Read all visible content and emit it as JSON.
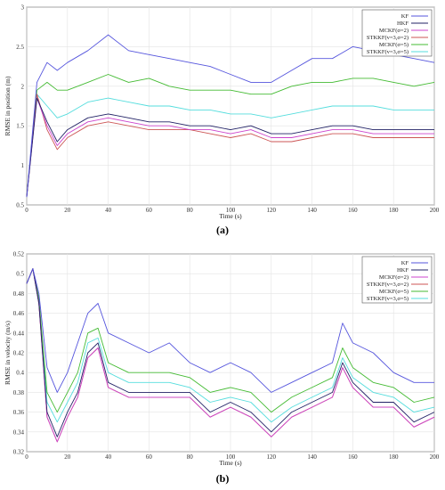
{
  "chart_data": [
    {
      "type": "line",
      "caption": "(a)",
      "xlabel": "Time (s)",
      "ylabel": "RMSE in position (m)",
      "xlim": [
        0,
        200
      ],
      "ylim": [
        0.5,
        3
      ],
      "xticks": [
        0,
        20,
        40,
        60,
        80,
        100,
        120,
        140,
        160,
        180,
        200
      ],
      "yticks": [
        0.5,
        1,
        1.5,
        2,
        2.5,
        3
      ],
      "grid": true,
      "legend_position": "top-right",
      "x": [
        0,
        5,
        10,
        15,
        20,
        30,
        40,
        50,
        60,
        70,
        80,
        90,
        100,
        110,
        120,
        130,
        140,
        150,
        160,
        170,
        180,
        190,
        200
      ],
      "series": [
        {
          "name": "KF",
          "color": "#5555dd",
          "values": [
            0.6,
            2.05,
            2.3,
            2.2,
            2.3,
            2.45,
            2.65,
            2.45,
            2.4,
            2.35,
            2.3,
            2.25,
            2.15,
            2.05,
            2.05,
            2.2,
            2.35,
            2.35,
            2.5,
            2.45,
            2.4,
            2.35,
            2.3
          ]
        },
        {
          "name": "HKF",
          "color": "#222266",
          "values": [
            0.6,
            1.85,
            1.55,
            1.3,
            1.45,
            1.6,
            1.65,
            1.6,
            1.55,
            1.55,
            1.5,
            1.5,
            1.45,
            1.5,
            1.4,
            1.4,
            1.45,
            1.5,
            1.5,
            1.45,
            1.45,
            1.45,
            1.45
          ]
        },
        {
          "name": "MCKF(σ=2)",
          "color": "#cc44cc",
          "values": [
            0.6,
            1.85,
            1.5,
            1.25,
            1.4,
            1.55,
            1.6,
            1.55,
            1.5,
            1.5,
            1.45,
            1.45,
            1.4,
            1.45,
            1.35,
            1.35,
            1.4,
            1.45,
            1.45,
            1.4,
            1.4,
            1.4,
            1.4
          ]
        },
        {
          "name": "STKKF(v=3,σ=2)",
          "color": "#cc5555",
          "values": [
            0.6,
            1.9,
            1.45,
            1.2,
            1.35,
            1.5,
            1.55,
            1.5,
            1.45,
            1.45,
            1.45,
            1.4,
            1.35,
            1.4,
            1.3,
            1.3,
            1.35,
            1.4,
            1.4,
            1.35,
            1.35,
            1.35,
            1.35
          ]
        },
        {
          "name": "MCKF(σ=5)",
          "color": "#44bb33",
          "values": [
            0.6,
            1.95,
            2.05,
            1.95,
            1.95,
            2.05,
            2.15,
            2.05,
            2.1,
            2.0,
            1.95,
            1.95,
            1.95,
            1.9,
            1.9,
            2.0,
            2.05,
            2.05,
            2.1,
            2.1,
            2.05,
            2.0,
            2.05
          ]
        },
        {
          "name": "STKKF(v=3,σ=5)",
          "color": "#55dddd",
          "values": [
            0.6,
            1.9,
            1.75,
            1.6,
            1.65,
            1.8,
            1.85,
            1.8,
            1.75,
            1.75,
            1.7,
            1.7,
            1.65,
            1.65,
            1.6,
            1.65,
            1.7,
            1.75,
            1.75,
            1.75,
            1.7,
            1.7,
            1.7
          ]
        }
      ]
    },
    {
      "type": "line",
      "caption": "(b)",
      "xlabel": "Time (s)",
      "ylabel": "RMSE in velocity (m/s)",
      "xlim": [
        0,
        200
      ],
      "ylim": [
        0.32,
        0.52
      ],
      "xticks": [
        0,
        20,
        40,
        60,
        80,
        100,
        120,
        140,
        160,
        180,
        200
      ],
      "yticks": [
        0.32,
        0.34,
        0.36,
        0.38,
        0.4,
        0.42,
        0.44,
        0.46,
        0.48,
        0.5,
        0.52
      ],
      "grid": true,
      "legend_position": "top-right",
      "x": [
        0,
        3,
        6,
        10,
        15,
        20,
        25,
        30,
        35,
        40,
        50,
        60,
        70,
        80,
        90,
        100,
        110,
        120,
        130,
        140,
        150,
        155,
        160,
        170,
        180,
        190,
        200
      ],
      "series": [
        {
          "name": "KF",
          "color": "#5555dd",
          "values": [
            0.49,
            0.505,
            0.48,
            0.405,
            0.38,
            0.4,
            0.43,
            0.46,
            0.47,
            0.44,
            0.43,
            0.42,
            0.43,
            0.41,
            0.4,
            0.41,
            0.4,
            0.38,
            0.39,
            0.4,
            0.41,
            0.45,
            0.43,
            0.42,
            0.4,
            0.39,
            0.39
          ]
        },
        {
          "name": "HKF",
          "color": "#222266",
          "values": [
            0.49,
            0.505,
            0.47,
            0.36,
            0.335,
            0.36,
            0.38,
            0.42,
            0.43,
            0.39,
            0.38,
            0.38,
            0.38,
            0.38,
            0.36,
            0.37,
            0.36,
            0.34,
            0.36,
            0.37,
            0.38,
            0.41,
            0.39,
            0.37,
            0.37,
            0.35,
            0.36
          ]
        },
        {
          "name": "MCKF(σ=2)",
          "color": "#cc44cc",
          "values": [
            0.49,
            0.505,
            0.47,
            0.355,
            0.33,
            0.355,
            0.375,
            0.415,
            0.425,
            0.385,
            0.375,
            0.375,
            0.375,
            0.375,
            0.355,
            0.365,
            0.355,
            0.335,
            0.355,
            0.365,
            0.375,
            0.405,
            0.385,
            0.365,
            0.365,
            0.345,
            0.355
          ]
        },
        {
          "name": "STKKF(v=3,σ=2)",
          "color": "#cc5555",
          "values": [
            0.49,
            0.505,
            0.47,
            0.355,
            0.33,
            0.355,
            0.375,
            0.415,
            0.425,
            0.385,
            0.375,
            0.375,
            0.375,
            0.375,
            0.355,
            0.365,
            0.355,
            0.335,
            0.355,
            0.365,
            0.375,
            0.405,
            0.385,
            0.365,
            0.365,
            0.345,
            0.355
          ]
        },
        {
          "name": "MCKF(σ=5)",
          "color": "#44bb33",
          "values": [
            0.49,
            0.505,
            0.475,
            0.38,
            0.36,
            0.38,
            0.4,
            0.44,
            0.445,
            0.41,
            0.4,
            0.4,
            0.4,
            0.395,
            0.38,
            0.385,
            0.38,
            0.36,
            0.375,
            0.385,
            0.395,
            0.425,
            0.405,
            0.39,
            0.385,
            0.37,
            0.375
          ]
        },
        {
          "name": "STKKF(v=3,σ=5)",
          "color": "#55dddd",
          "values": [
            0.49,
            0.505,
            0.47,
            0.37,
            0.35,
            0.37,
            0.39,
            0.43,
            0.435,
            0.4,
            0.39,
            0.39,
            0.39,
            0.385,
            0.37,
            0.375,
            0.37,
            0.35,
            0.365,
            0.375,
            0.385,
            0.415,
            0.395,
            0.38,
            0.375,
            0.36,
            0.365
          ]
        }
      ]
    }
  ]
}
